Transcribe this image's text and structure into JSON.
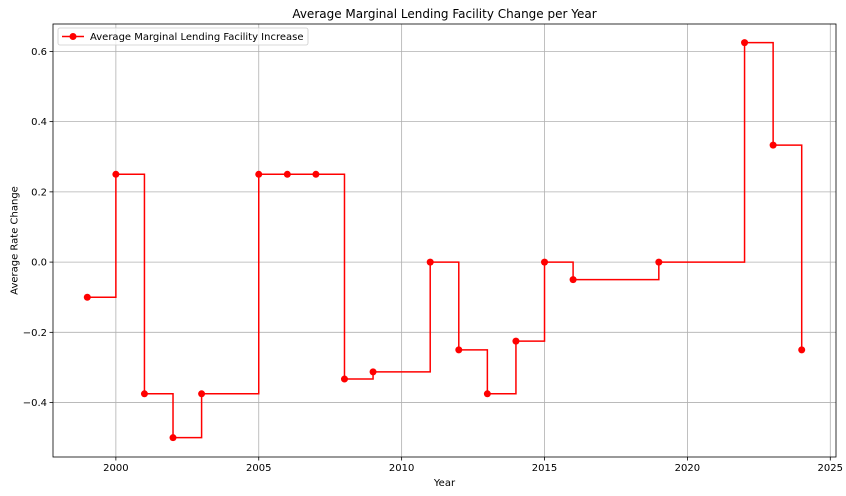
{
  "chart_data": {
    "type": "line",
    "step": "post",
    "title": "Average Marginal Lending Facility Change per Year",
    "xlabel": "Year",
    "ylabel": "Average Rate Change",
    "xlim": [
      1997.8,
      2025.2
    ],
    "ylim": [
      -0.555,
      0.678
    ],
    "xticks": [
      2000,
      2005,
      2010,
      2015,
      2020,
      2025
    ],
    "yticks": [
      -0.4,
      -0.2,
      0.0,
      0.2,
      0.4,
      0.6
    ],
    "ytick_labels": [
      "−0.4",
      "−0.2",
      "0.0",
      "0.2",
      "0.4",
      "0.6"
    ],
    "grid": true,
    "legend_position": "upper-left",
    "series": [
      {
        "name": "Average Marginal Lending Facility Increase",
        "color": "#ff0000",
        "marker": "circle",
        "x": [
          1999,
          2000,
          2001,
          2002,
          2003,
          2005,
          2006,
          2007,
          2008,
          2009,
          2011,
          2012,
          2013,
          2014,
          2015,
          2016,
          2019,
          2022,
          2023,
          2024
        ],
        "y": [
          -0.1,
          0.25,
          -0.375,
          -0.5,
          -0.375,
          0.25,
          0.25,
          0.25,
          -0.333,
          -0.3125,
          0.0,
          -0.25,
          -0.375,
          -0.225,
          0.0,
          -0.05,
          0.0,
          0.625,
          0.333,
          -0.25
        ]
      }
    ]
  }
}
